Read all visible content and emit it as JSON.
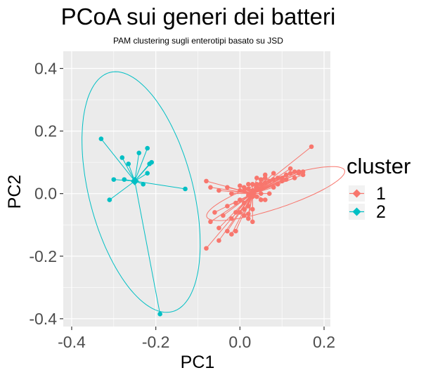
{
  "chart_data": {
    "type": "scatter",
    "title": "PCoA sui generi dei batteri",
    "subtitle": "PAM clustering sugli enterotipi basato su JSD",
    "xlabel": "PC1",
    "ylabel": "PC2",
    "xlim": [
      -0.42,
      0.215
    ],
    "ylim": [
      -0.425,
      0.455
    ],
    "x_ticks": [
      -0.4,
      -0.2,
      0.0,
      0.2
    ],
    "x_tick_labels": [
      "-0.4",
      "-0.2",
      "0.0",
      "0.2"
    ],
    "y_ticks": [
      -0.4,
      -0.2,
      0.0,
      0.2,
      0.4
    ],
    "y_tick_labels": [
      "-0.4",
      "-0.2",
      "0.0",
      "0.2",
      "0.4"
    ],
    "grid": true,
    "panel_background": "#ebebeb",
    "legend": {
      "title": "cluster",
      "position": "right",
      "entries": [
        {
          "label": "1",
          "color": "#f8766d"
        },
        {
          "label": "2",
          "color": "#00bfc4"
        }
      ]
    },
    "series": [
      {
        "name": "1",
        "color": "#f8766d",
        "centroid": [
          0.03,
          0.0
        ],
        "points": [
          [
            0.17,
            0.15
          ],
          [
            0.12,
            0.08
          ],
          [
            0.13,
            0.07
          ],
          [
            0.14,
            0.07
          ],
          [
            0.15,
            0.07
          ],
          [
            0.11,
            0.06
          ],
          [
            0.12,
            0.065
          ],
          [
            0.14,
            0.065
          ],
          [
            0.1,
            0.05
          ],
          [
            0.09,
            0.05
          ],
          [
            0.08,
            0.045
          ],
          [
            0.07,
            0.04
          ],
          [
            0.06,
            0.035
          ],
          [
            0.05,
            0.03
          ],
          [
            0.04,
            0.02
          ],
          [
            0.03,
            0.01
          ],
          [
            0.02,
            0.015
          ],
          [
            0.01,
            0.01
          ],
          [
            0.0,
            0.01
          ],
          [
            0.02,
            -0.005
          ],
          [
            0.03,
            -0.01
          ],
          [
            0.04,
            -0.01
          ],
          [
            0.05,
            -0.02
          ],
          [
            0.06,
            -0.02
          ],
          [
            0.07,
            0.0
          ],
          [
            0.08,
            0.02
          ],
          [
            0.09,
            0.03
          ],
          [
            0.1,
            0.04
          ],
          [
            0.11,
            0.045
          ],
          [
            0.13,
            0.05
          ],
          [
            0.15,
            0.06
          ],
          [
            0.0,
            -0.02
          ],
          [
            0.01,
            -0.03
          ],
          [
            0.02,
            -0.04
          ],
          [
            0.03,
            -0.05
          ],
          [
            0.0,
            -0.06
          ],
          [
            0.01,
            -0.07
          ],
          [
            0.02,
            -0.08
          ],
          [
            0.03,
            -0.09
          ],
          [
            -0.01,
            -0.03
          ],
          [
            0.04,
            0.03
          ],
          [
            0.05,
            0.045
          ],
          [
            0.06,
            0.05
          ],
          [
            0.03,
            0.03
          ],
          [
            0.02,
            0.03
          ],
          [
            0.01,
            0.02
          ],
          [
            0.0,
            0.025
          ],
          [
            0.04,
            0.05
          ],
          [
            0.06,
            0.06
          ],
          [
            0.08,
            0.065
          ],
          [
            -0.08,
            0.04
          ],
          [
            -0.07,
            0.02
          ],
          [
            -0.05,
            0.01
          ],
          [
            -0.03,
            0.02
          ],
          [
            -0.02,
            0.0
          ],
          [
            -0.03,
            -0.04
          ],
          [
            -0.04,
            -0.07
          ],
          [
            -0.06,
            -0.06
          ],
          [
            -0.07,
            -0.09
          ],
          [
            -0.05,
            -0.11
          ],
          [
            -0.03,
            -0.12
          ],
          [
            -0.02,
            -0.13
          ],
          [
            -0.01,
            -0.12
          ],
          [
            -0.05,
            -0.15
          ],
          [
            -0.08,
            -0.175
          ],
          [
            -0.02,
            -0.08
          ],
          [
            -0.01,
            -0.06
          ],
          [
            0.01,
            -0.05
          ],
          [
            0.02,
            -0.065
          ],
          [
            0.05,
            0.0
          ]
        ],
        "ellipse": {
          "cx": 0.085,
          "cy": 0.0,
          "rx": 0.18,
          "ry": 0.045,
          "angle_deg": 25
        }
      },
      {
        "name": "2",
        "color": "#00bfc4",
        "centroid": [
          -0.25,
          0.04
        ],
        "points": [
          [
            -0.33,
            0.175
          ],
          [
            -0.28,
            0.115
          ],
          [
            -0.265,
            0.095
          ],
          [
            -0.22,
            0.145
          ],
          [
            -0.24,
            0.13
          ],
          [
            -0.21,
            0.1
          ],
          [
            -0.215,
            0.095
          ],
          [
            -0.22,
            0.065
          ],
          [
            -0.275,
            0.045
          ],
          [
            -0.3,
            0.045
          ],
          [
            -0.31,
            -0.02
          ],
          [
            -0.23,
            0.03
          ],
          [
            -0.13,
            0.015
          ],
          [
            -0.19,
            -0.385
          ]
        ],
        "ellipse": {
          "cx": -0.235,
          "cy": 0.005,
          "rx": 0.39,
          "ry": 0.125,
          "angle_deg": -80
        }
      }
    ]
  }
}
